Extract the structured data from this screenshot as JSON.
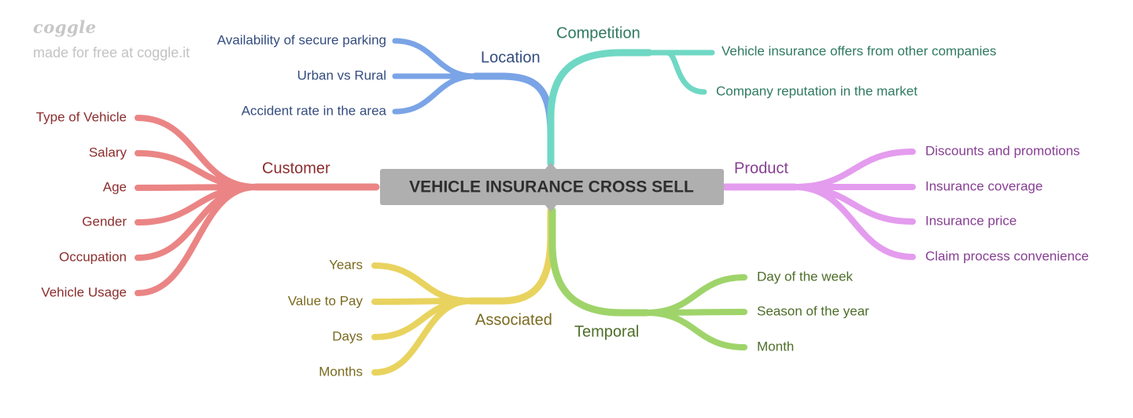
{
  "brand": {
    "logo": "coggle",
    "tagline": "made for free at coggle.it"
  },
  "central": {
    "label": "VEHICLE INSURANCE CROSS SELL"
  },
  "branches": {
    "location": {
      "label": "Location",
      "color": "#7aa4e6",
      "text_color": "#344d7f",
      "children": [
        "Availability of secure parking",
        "Urban vs Rural",
        "Accident rate in the area"
      ]
    },
    "competition": {
      "label": "Competition",
      "color": "#6fd8c4",
      "text_color": "#2f7a62",
      "children": [
        "Vehicle insurance offers from other companies",
        "Company reputation in the market"
      ]
    },
    "customer": {
      "label": "Customer",
      "color": "#eb8585",
      "text_color": "#8c2e2e",
      "children": [
        "Type of Vehicle",
        "Salary",
        "Age",
        "Gender",
        "Occupation",
        "Vehicle Usage"
      ]
    },
    "product": {
      "label": "Product",
      "color": "#e49cee",
      "text_color": "#873f93",
      "children": [
        "Discounts and promotions",
        "Insurance coverage",
        "Insurance price",
        "Claim process convenience"
      ]
    },
    "associated": {
      "label": "Associated",
      "color": "#e9d35f",
      "text_color": "#7a6a1f",
      "children": [
        "Years",
        "Value to Pay",
        "Days",
        "Months"
      ]
    },
    "temporal": {
      "label": "Temporal",
      "color": "#9fd46a",
      "text_color": "#4e6e2a",
      "children": [
        "Day of the week",
        "Season of the year",
        "Month"
      ]
    }
  }
}
